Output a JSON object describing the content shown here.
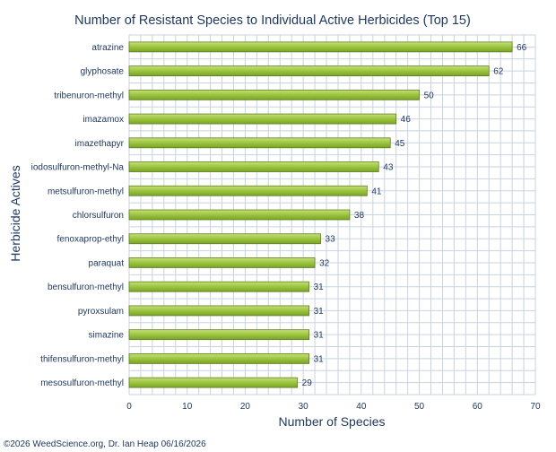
{
  "chart_data": {
    "type": "bar",
    "orientation": "horizontal",
    "title": "Number of Resistant Species to Individual Active Herbicides (Top 15)",
    "xlabel": "Number of Species",
    "ylabel": "Herbicide Actives",
    "categories": [
      "atrazine",
      "glyphosate",
      "tribenuron-methyl",
      "imazamox",
      "imazethapyr",
      "iodosulfuron-methyl-Na",
      "metsulfuron-methyl",
      "chlorsulfuron",
      "fenoxaprop-ethyl",
      "paraquat",
      "bensulfuron-methyl",
      "pyroxsulam",
      "simazine",
      "thifensulfuron-methyl",
      "mesosulfuron-methyl"
    ],
    "values": [
      66,
      62,
      50,
      46,
      45,
      43,
      41,
      38,
      33,
      32,
      31,
      31,
      31,
      31,
      29
    ],
    "xlim": [
      0,
      70
    ],
    "xticks": [
      0,
      10,
      20,
      30,
      40,
      50,
      60,
      70
    ],
    "grid": true,
    "data_labels": true,
    "bar_color": "#9bc53d",
    "bar_border_color": "#5f7f1f"
  },
  "credit": "©2026 WeedScience.org, Dr. Ian Heap 06/16/2026",
  "colors": {
    "text": "#1f3864",
    "grid": "#c9d3df"
  }
}
